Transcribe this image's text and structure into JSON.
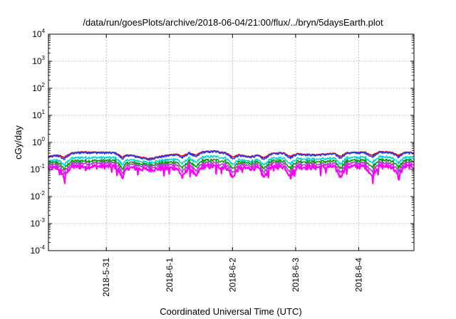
{
  "chart_data": {
    "type": "line",
    "title": "/data/run/goesPlots/archive/2018-06-04/21:00/flux/../bryn/5daysEarth.plot",
    "xlabel": "Coordinated Universal Time (UTC)",
    "ylabel": "cGy/day",
    "yscale": "log",
    "ylim": [
      0.0001,
      10000
    ],
    "yticks": [
      {
        "base": "10",
        "exp": "-4"
      },
      {
        "base": "10",
        "exp": "-3"
      },
      {
        "base": "10",
        "exp": "-2"
      },
      {
        "base": "10",
        "exp": "-1"
      },
      {
        "base": "10",
        "exp": "0"
      },
      {
        "base": "10",
        "exp": "1"
      },
      {
        "base": "10",
        "exp": "2"
      },
      {
        "base": "10",
        "exp": "3"
      },
      {
        "base": "10",
        "exp": "4"
      }
    ],
    "xlim": [
      "2018-05-30 02:00",
      "2018-06-04 21:00"
    ],
    "xticks": [
      "2018-5-31",
      "2018-6-1",
      "2018-6-2",
      "2018-6-3",
      "2018-6-4"
    ],
    "xtick_values": [
      "2018-05-31 00:00",
      "2018-06-01 00:00",
      "2018-06-02 00:00",
      "2018-06-03 00:00",
      "2018-06-04 00:00"
    ],
    "grid": true,
    "legend": "none",
    "dip_times": [
      "2018-05-30 08:00",
      "2018-05-31 06:00",
      "2018-06-01 05:00",
      "2018-06-01 10:00",
      "2018-06-02 00:00",
      "2018-06-02 12:00",
      "2018-06-02 22:00",
      "2018-06-03 17:00",
      "2018-06-04 05:00",
      "2018-06-04 15:00"
    ],
    "series": [
      {
        "color": "#e8000b",
        "base": [
          0.3,
          0.45,
          0.42,
          0.25,
          0.4,
          0.48,
          0.3,
          0.42,
          0.35,
          0.42,
          0.45,
          0.42
        ]
      },
      {
        "color": "#1f3fff",
        "base": [
          0.28,
          0.42,
          0.4,
          0.23,
          0.38,
          0.45,
          0.28,
          0.4,
          0.33,
          0.4,
          0.42,
          0.4
        ]
      },
      {
        "color": "#00d6d6",
        "base": [
          0.2,
          0.28,
          0.27,
          0.18,
          0.26,
          0.3,
          0.2,
          0.27,
          0.24,
          0.27,
          0.29,
          0.27
        ]
      },
      {
        "color": "#00a000",
        "base": [
          0.17,
          0.21,
          0.21,
          0.15,
          0.2,
          0.22,
          0.17,
          0.21,
          0.19,
          0.21,
          0.22,
          0.21
        ]
      },
      {
        "color": "#b040d0",
        "base": [
          0.14,
          0.17,
          0.17,
          0.13,
          0.16,
          0.17,
          0.14,
          0.17,
          0.15,
          0.17,
          0.17,
          0.17
        ]
      },
      {
        "color": "#ff00ff",
        "base": [
          0.11,
          0.13,
          0.13,
          0.1,
          0.12,
          0.13,
          0.11,
          0.13,
          0.12,
          0.13,
          0.13,
          0.13
        ]
      }
    ]
  }
}
